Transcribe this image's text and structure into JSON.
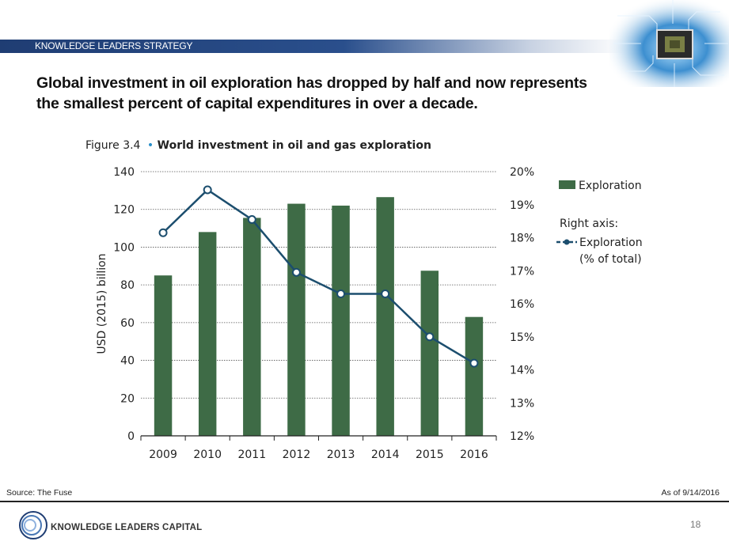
{
  "header": {
    "label": "KNOWLEDGE LEADERS STRATEGY",
    "headline_line1": "Global investment in oil exploration has dropped by half and now represents",
    "headline_line2": "the smallest percent of capital expenditures in over a decade."
  },
  "colors": {
    "bar": "#3e6b46",
    "line": "#1c4e6e",
    "header_bar": "#1f3d73"
  },
  "chart_data": {
    "type": "bar",
    "title_prefix": "Figure 3.4",
    "title": "World investment in oil and gas exploration",
    "categories": [
      "2009",
      "2010",
      "2011",
      "2012",
      "2013",
      "2014",
      "2015",
      "2016"
    ],
    "ylabel": "USD (2015) billion",
    "ylim": [
      0,
      140
    ],
    "yticks": [
      0,
      20,
      40,
      60,
      80,
      100,
      120,
      140
    ],
    "y2lim": [
      12,
      20
    ],
    "y2ticks": [
      "12%",
      "13%",
      "14%",
      "15%",
      "16%",
      "17%",
      "18%",
      "19%",
      "20%"
    ],
    "grid": true,
    "legend_position": "right",
    "series": [
      {
        "name": "Exploration",
        "type": "bar",
        "axis": "left",
        "values": [
          85,
          108,
          115.5,
          123,
          122,
          126.5,
          87.5,
          63
        ]
      },
      {
        "name": "Exploration",
        "name_suffix": "(% of total)",
        "type": "line",
        "axis": "right",
        "values": [
          18.15,
          19.45,
          18.55,
          16.95,
          16.3,
          16.3,
          15.0,
          14.2
        ]
      }
    ],
    "legend_right_axis_label": "Right axis:"
  },
  "footer": {
    "source": "Source: The Fuse",
    "date": "As of 9/14/2016",
    "company": "KNOWLEDGE LEADERS CAPITAL",
    "page": "18"
  }
}
